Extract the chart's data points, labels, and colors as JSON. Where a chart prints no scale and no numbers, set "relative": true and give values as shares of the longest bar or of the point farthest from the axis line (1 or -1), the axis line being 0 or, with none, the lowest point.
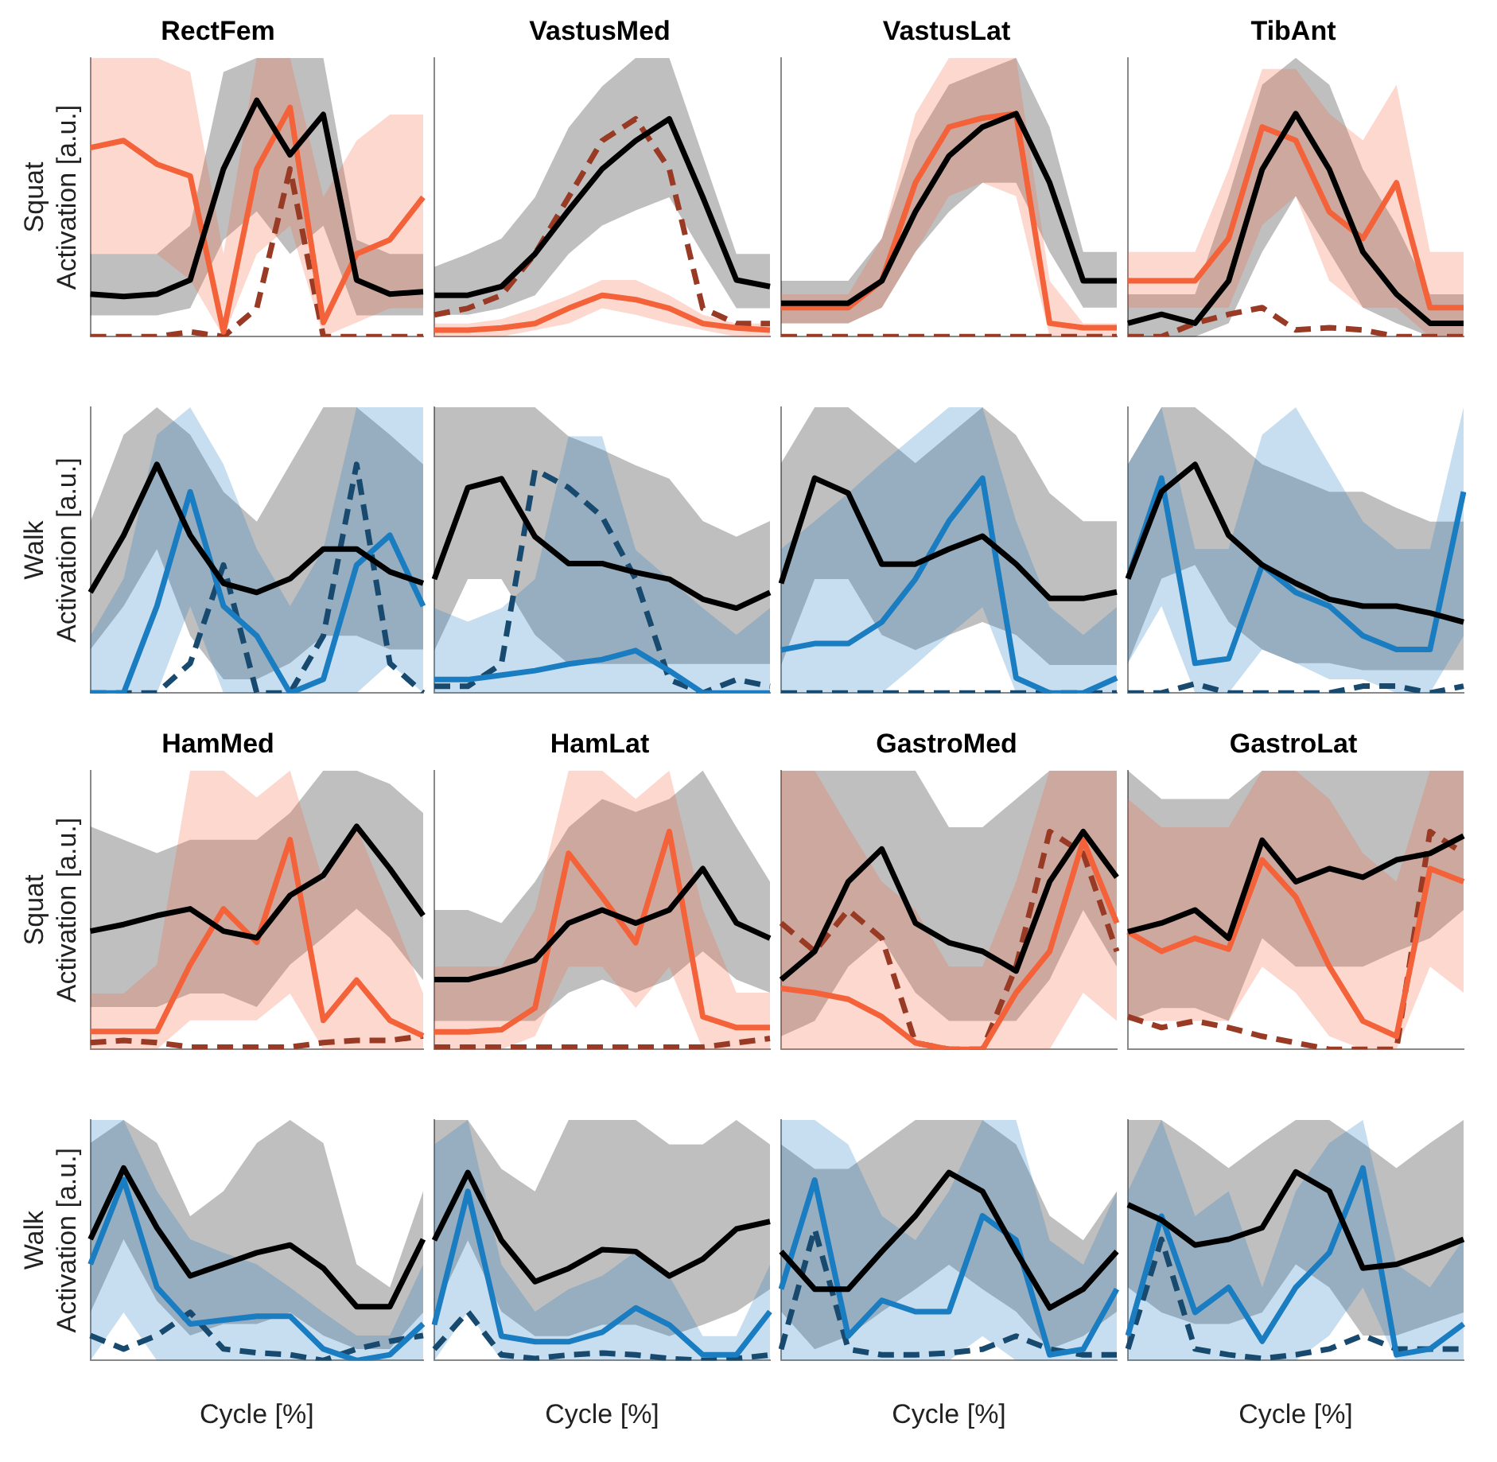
{
  "chart_data": [
    {
      "type": "line",
      "title": "RectFem",
      "ylabel": "Squat\nActivation [a.u.]",
      "relative": true,
      "grid": false,
      "categories": [
        null,
        null,
        null,
        null,
        null,
        null,
        null,
        null,
        null,
        null,
        null
      ],
      "series": [
        {
          "color": "#000000",
          "values": [
            0.18,
            0.17,
            0.18,
            0.24,
            0.71,
            1,
            0.77,
            0.94,
            0.24,
            0.18,
            0.19
          ],
          "lower": [
            0.09,
            0.09,
            0.09,
            0.12,
            0.41,
            0.53,
            0.35,
            0.47,
            0.09,
            0.09,
            0.09
          ],
          "upper": [
            0.35,
            0.35,
            0.35,
            0.47,
            1.12,
            1.18,
            1.18,
            1.18,
            0.41,
            0.35,
            0.35
          ]
        },
        {
          "color": "#f4623a",
          "values": [
            0.8,
            0.83,
            0.73,
            0.68,
            0.02,
            0.71,
            0.97,
            0.06,
            0.35,
            0.41,
            0.59
          ],
          "lower": [
            0.35,
            0.35,
            0.35,
            0.24,
            0,
            0.35,
            0.47,
            0,
            0.06,
            0.12,
            0.12
          ],
          "upper": [
            1.18,
            1.18,
            1.18,
            1.12,
            0.35,
            1.18,
            1.18,
            0.59,
            0.83,
            0.94,
            0.94
          ]
        },
        {
          "color": "#993a25",
          "line_style": "dashed",
          "values": [
            0,
            0,
            0,
            0.02,
            0,
            0.12,
            0.71,
            0,
            0,
            0,
            0
          ]
        }
      ]
    },
    {
      "type": "line",
      "title": "VastusMed",
      "relative": true,
      "grid": false,
      "categories": [
        null,
        null,
        null,
        null,
        null,
        null,
        null,
        null,
        null,
        null,
        null
      ],
      "series": [
        {
          "color": "#000000",
          "values": [
            0.19,
            0.19,
            0.23,
            0.38,
            0.58,
            0.77,
            0.9,
            1,
            0.64,
            0.26,
            0.23
          ],
          "lower": [
            0.1,
            0.1,
            0.13,
            0.19,
            0.38,
            0.51,
            0.58,
            0.64,
            0.38,
            0.13,
            0.13
          ],
          "upper": [
            0.32,
            0.38,
            0.45,
            0.64,
            0.96,
            1.15,
            1.28,
            1.28,
            0.83,
            0.38,
            0.38
          ]
        },
        {
          "color": "#f4623a",
          "values": [
            0.03,
            0.03,
            0.04,
            0.06,
            0.13,
            0.19,
            0.17,
            0.13,
            0.06,
            0.04,
            0.03
          ],
          "lower": [
            0,
            0,
            0,
            0.03,
            0.06,
            0.13,
            0.1,
            0.06,
            0.03,
            0,
            0
          ],
          "upper": [
            0.06,
            0.06,
            0.08,
            0.13,
            0.19,
            0.26,
            0.26,
            0.19,
            0.1,
            0.06,
            0.06
          ]
        },
        {
          "color": "#993a25",
          "line_style": "dashed",
          "values": [
            0.1,
            0.13,
            0.19,
            0.38,
            0.64,
            0.9,
            1,
            0.77,
            0.13,
            0.06,
            0.06
          ]
        }
      ]
    },
    {
      "type": "line",
      "title": "VastusLat",
      "relative": true,
      "grid": false,
      "categories": [
        null,
        null,
        null,
        null,
        null,
        null,
        null,
        null,
        null,
        null,
        null
      ],
      "series": [
        {
          "color": "#000000",
          "values": [
            0.15,
            0.15,
            0.15,
            0.25,
            0.56,
            0.81,
            0.94,
            1,
            0.69,
            0.25,
            0.25
          ],
          "lower": [
            0.06,
            0.06,
            0.06,
            0.13,
            0.38,
            0.56,
            0.69,
            0.69,
            0.38,
            0.13,
            0.13
          ],
          "upper": [
            0.25,
            0.25,
            0.25,
            0.44,
            0.88,
            1.13,
            1.19,
            1.25,
            0.94,
            0.38,
            0.38
          ]
        },
        {
          "color": "#f4623a",
          "values": [
            0.13,
            0.13,
            0.13,
            0.25,
            0.69,
            0.94,
            0.98,
            1,
            0.06,
            0.04,
            0.04
          ],
          "lower": [
            0.06,
            0.06,
            0.06,
            0.13,
            0.38,
            0.63,
            0.69,
            0.63,
            0,
            0,
            0
          ],
          "upper": [
            0.19,
            0.19,
            0.19,
            0.44,
            1,
            1.25,
            1.25,
            1.25,
            0.25,
            0.06,
            0.06
          ]
        },
        {
          "color": "#993a25",
          "line_style": "dashed",
          "values": [
            0,
            0,
            0,
            0,
            0,
            0,
            0,
            0,
            0,
            0,
            0
          ]
        }
      ]
    },
    {
      "type": "line",
      "title": "TibAnt",
      "relative": true,
      "grid": false,
      "categories": [
        null,
        null,
        null,
        null,
        null,
        null,
        null,
        null,
        null,
        null,
        null
      ],
      "series": [
        {
          "color": "#000000",
          "values": [
            0.06,
            0.1,
            0.06,
            0.25,
            0.75,
            1,
            0.75,
            0.38,
            0.19,
            0.06,
            0.06
          ],
          "lower": [
            0,
            0,
            0,
            0.06,
            0.38,
            0.63,
            0.38,
            0.13,
            0.06,
            0,
            0
          ],
          "upper": [
            0.19,
            0.19,
            0.19,
            0.63,
            1.13,
            1.25,
            1.13,
            0.75,
            0.5,
            0.19,
            0.19
          ]
        },
        {
          "color": "#f4623a",
          "values": [
            0.25,
            0.25,
            0.25,
            0.44,
            0.94,
            0.88,
            0.56,
            0.44,
            0.69,
            0.13,
            0.13
          ],
          "lower": [
            0.13,
            0.13,
            0.13,
            0.13,
            0.5,
            0.63,
            0.25,
            0.13,
            0.13,
            0,
            0
          ],
          "upper": [
            0.38,
            0.38,
            0.38,
            0.75,
            1.2,
            1.2,
            1,
            0.88,
            1.13,
            0.38,
            0.38
          ]
        },
        {
          "color": "#993a25",
          "line_style": "dashed",
          "values": [
            0,
            0,
            0.06,
            0.1,
            0.13,
            0.03,
            0.04,
            0.03,
            0,
            0,
            0
          ]
        }
      ]
    },
    {
      "type": "line",
      "ylabel": "Walk\nActivation [a.u.]",
      "relative": true,
      "grid": false,
      "categories": [
        null,
        null,
        null,
        null,
        null,
        null,
        null,
        null,
        null,
        null,
        null
      ],
      "series": [
        {
          "color": "#000000",
          "values": [
            0.44,
            0.69,
            1,
            0.69,
            0.48,
            0.44,
            0.5,
            0.63,
            0.63,
            0.53,
            0.48
          ],
          "lower": [
            0.19,
            0.38,
            0.63,
            0.25,
            0.06,
            0.06,
            0.13,
            0.25,
            0.25,
            0.19,
            0.19
          ],
          "upper": [
            0.75,
            1.13,
            1.25,
            1.13,
            0.88,
            0.75,
            1,
            1.25,
            1.25,
            1.13,
            1
          ]
        },
        {
          "color": "#1a7cc1",
          "values": [
            0,
            0,
            0.38,
            0.88,
            0.38,
            0.25,
            0,
            0.06,
            0.56,
            0.69,
            0.38
          ],
          "lower": [
            0,
            0,
            0,
            0.38,
            0,
            0,
            0,
            0,
            0,
            0.13,
            0
          ],
          "upper": [
            0.25,
            0.5,
            1.13,
            1.25,
            1,
            0.63,
            0.38,
            0.63,
            1.25,
            1.25,
            1.25
          ]
        },
        {
          "color": "#174a6e",
          "line_style": "dashed",
          "values": [
            0,
            0,
            0,
            0.13,
            0.56,
            0,
            0,
            0.25,
            1,
            0.13,
            0
          ]
        }
      ]
    },
    {
      "type": "line",
      "relative": true,
      "grid": false,
      "categories": [
        null,
        null,
        null,
        null,
        null,
        null,
        null,
        null,
        null,
        null,
        null
      ],
      "series": [
        {
          "color": "#000000",
          "values": [
            0.51,
            0.92,
            0.96,
            0.7,
            0.58,
            0.58,
            0.54,
            0.51,
            0.42,
            0.38,
            0.45
          ],
          "lower": [
            0.19,
            0.51,
            0.51,
            0.26,
            0.13,
            0.13,
            0.13,
            0.13,
            0.13,
            0.13,
            0.13
          ],
          "upper": [
            1.28,
            1.28,
            1.28,
            1.28,
            1.15,
            1.09,
            1.02,
            0.96,
            0.77,
            0.7,
            0.77
          ]
        },
        {
          "color": "#1a7cc1",
          "values": [
            0.06,
            0.06,
            0.08,
            0.1,
            0.13,
            0.15,
            0.19,
            0.1,
            0,
            0,
            0
          ],
          "lower": [
            0,
            0,
            0,
            0,
            0,
            0,
            0,
            0,
            0,
            0,
            0
          ],
          "upper": [
            0.38,
            0.32,
            0.38,
            0.51,
            1.15,
            1.15,
            0.64,
            0.51,
            0.38,
            0.26,
            0.38
          ]
        },
        {
          "color": "#174a6e",
          "line_style": "dashed",
          "values": [
            0.03,
            0.03,
            0.13,
            1,
            0.92,
            0.79,
            0.51,
            0.06,
            0,
            0.06,
            0.03
          ]
        }
      ]
    },
    {
      "type": "line",
      "relative": true,
      "grid": false,
      "categories": [
        null,
        null,
        null,
        null,
        null,
        null,
        null,
        null,
        null,
        null,
        null
      ],
      "series": [
        {
          "color": "#000000",
          "values": [
            0.51,
            1,
            0.93,
            0.6,
            0.6,
            0.67,
            0.73,
            0.6,
            0.44,
            0.44,
            0.47
          ],
          "lower": [
            0.13,
            0.53,
            0.53,
            0.27,
            0.2,
            0.27,
            0.33,
            0.27,
            0.13,
            0.13,
            0.13
          ],
          "upper": [
            1.07,
            1.33,
            1.33,
            1.2,
            1.07,
            1.2,
            1.33,
            1.2,
            0.93,
            0.8,
            0.8
          ]
        },
        {
          "color": "#1a7cc1",
          "values": [
            0.2,
            0.23,
            0.23,
            0.33,
            0.53,
            0.8,
            1,
            0.07,
            0,
            0,
            0.07
          ],
          "lower": [
            0,
            0,
            0,
            0,
            0.13,
            0.27,
            0.4,
            0,
            0,
            0,
            0
          ],
          "upper": [
            0.67,
            0.8,
            0.93,
            1.07,
            1.2,
            1.33,
            1.33,
            0.8,
            0.4,
            0.27,
            0.4
          ]
        },
        {
          "color": "#174a6e",
          "line_style": "dashed",
          "values": [
            0,
            0,
            0,
            0,
            0,
            0,
            0,
            0,
            0,
            0,
            0
          ]
        }
      ]
    },
    {
      "type": "line",
      "relative": true,
      "grid": false,
      "categories": [
        null,
        null,
        null,
        null,
        null,
        null,
        null,
        null,
        null,
        null,
        null
      ],
      "series": [
        {
          "color": "#000000",
          "values": [
            0.5,
            0.88,
            1,
            0.69,
            0.56,
            0.48,
            0.41,
            0.38,
            0.38,
            0.35,
            0.31
          ],
          "lower": [
            0.13,
            0.5,
            0.56,
            0.31,
            0.19,
            0.13,
            0.13,
            0.1,
            0.1,
            0.1,
            0.1
          ],
          "upper": [
            1,
            1.25,
            1.25,
            1.13,
            1,
            0.94,
            0.88,
            0.88,
            0.81,
            0.75,
            0.75
          ]
        },
        {
          "color": "#1a7cc1",
          "values": [
            0.5,
            0.94,
            0.13,
            0.15,
            0.56,
            0.44,
            0.38,
            0.25,
            0.19,
            0.19,
            0.88
          ],
          "lower": [
            0.13,
            0.38,
            0,
            0,
            0.19,
            0.13,
            0.06,
            0.06,
            0,
            0,
            0.25
          ],
          "upper": [
            1,
            1.25,
            0.63,
            0.63,
            1.13,
            1.25,
            1,
            0.75,
            0.63,
            0.63,
            1.25
          ]
        },
        {
          "color": "#174a6e",
          "line_style": "dashed",
          "values": [
            0,
            0,
            0.04,
            0,
            0,
            0,
            0,
            0.03,
            0.03,
            0,
            0.03
          ]
        }
      ]
    },
    {
      "type": "line",
      "title": "HamMed",
      "ylabel": "Squat\nActivation [a.u.]",
      "relative": true,
      "grid": false,
      "categories": [
        null,
        null,
        null,
        null,
        null,
        null,
        null,
        null,
        null,
        null,
        null
      ],
      "series": [
        {
          "color": "#000000",
          "values": [
            0.53,
            0.56,
            0.6,
            0.63,
            0.53,
            0.5,
            0.69,
            0.78,
            1,
            0.81,
            0.6
          ],
          "lower": [
            0.19,
            0.19,
            0.19,
            0.25,
            0.25,
            0.19,
            0.38,
            0.5,
            0.63,
            0.5,
            0.31
          ],
          "upper": [
            1,
            0.94,
            0.88,
            0.94,
            0.94,
            0.94,
            1.06,
            1.25,
            1.25,
            1.19,
            1.06
          ]
        },
        {
          "color": "#f4623a",
          "values": [
            0.08,
            0.08,
            0.08,
            0.38,
            0.63,
            0.48,
            0.94,
            0.13,
            0.31,
            0.13,
            0.06
          ],
          "lower": [
            0,
            0,
            0,
            0.13,
            0.13,
            0.13,
            0.25,
            0,
            0,
            0,
            0
          ],
          "upper": [
            0.25,
            0.25,
            0.38,
            1.25,
            1.25,
            1.13,
            1.25,
            0.75,
            1,
            0.63,
            0.25
          ]
        },
        {
          "color": "#993a25",
          "line_style": "dashed",
          "values": [
            0.03,
            0.04,
            0.03,
            0.01,
            0.01,
            0.01,
            0.01,
            0.03,
            0.04,
            0.04,
            0.06
          ]
        }
      ]
    },
    {
      "type": "line",
      "title": "HamLat",
      "relative": true,
      "grid": false,
      "categories": [
        null,
        null,
        null,
        null,
        null,
        null,
        null,
        null,
        null,
        null,
        null
      ],
      "series": [
        {
          "color": "#000000",
          "values": [
            0.32,
            0.32,
            0.36,
            0.41,
            0.58,
            0.64,
            0.58,
            0.64,
            0.83,
            0.58,
            0.51
          ],
          "lower": [
            0.13,
            0.13,
            0.13,
            0.13,
            0.26,
            0.32,
            0.26,
            0.32,
            0.45,
            0.32,
            0.26
          ],
          "upper": [
            0.64,
            0.64,
            0.58,
            0.77,
            1.02,
            1.15,
            1.09,
            1.15,
            1.28,
            1.02,
            0.77
          ]
        },
        {
          "color": "#f4623a",
          "values": [
            0.08,
            0.08,
            0.09,
            0.19,
            0.9,
            0.7,
            0.49,
            1,
            0.15,
            0.1,
            0.1
          ],
          "lower": [
            0,
            0,
            0,
            0.06,
            0.38,
            0.38,
            0.19,
            0.38,
            0,
            0,
            0
          ],
          "upper": [
            0.38,
            0.38,
            0.38,
            0.64,
            1.28,
            1.28,
            1.15,
            1.28,
            0.64,
            0.26,
            0.26
          ]
        },
        {
          "color": "#993a25",
          "line_style": "dashed",
          "values": [
            0.01,
            0.01,
            0.01,
            0.01,
            0.01,
            0.01,
            0.01,
            0.01,
            0.01,
            0.03,
            0.05
          ]
        }
      ]
    },
    {
      "type": "line",
      "title": "GastroMed",
      "relative": true,
      "grid": false,
      "categories": [
        null,
        null,
        null,
        null,
        null,
        null,
        null,
        null,
        null,
        null,
        null
      ],
      "series": [
        {
          "color": "#000000",
          "values": [
            0.32,
            0.45,
            0.77,
            0.92,
            0.58,
            0.49,
            0.45,
            0.36,
            0.77,
            1,
            0.79
          ],
          "lower": [
            0.06,
            0.13,
            0.38,
            0.51,
            0.26,
            0.13,
            0.13,
            0.13,
            0.32,
            0.64,
            0.38
          ],
          "upper": [
            1.28,
            1.28,
            1.28,
            1.28,
            1.28,
            1.02,
            1.02,
            1.15,
            1.28,
            1.28,
            1.28
          ]
        },
        {
          "color": "#f4623a",
          "values": [
            0.28,
            0.26,
            0.23,
            0.15,
            0.03,
            0,
            0,
            0.26,
            0.45,
            0.96,
            0.58
          ],
          "lower": [
            0,
            0,
            0,
            0,
            0,
            0,
            0,
            0,
            0,
            0.26,
            0.13
          ],
          "upper": [
            1.28,
            1.28,
            1.02,
            0.77,
            0.64,
            0.38,
            0.38,
            0.77,
            1.28,
            1.28,
            1.28
          ]
        },
        {
          "color": "#993a25",
          "line_style": "dashed",
          "values": [
            0.58,
            0.45,
            0.64,
            0.51,
            0.03,
            0,
            0,
            0.38,
            1,
            0.9,
            0.45
          ]
        }
      ]
    },
    {
      "type": "line",
      "title": "GastroLat",
      "relative": true,
      "grid": false,
      "categories": [
        null,
        null,
        null,
        null,
        null,
        null,
        null,
        null,
        null,
        null,
        null
      ],
      "series": [
        {
          "color": "#000000",
          "values": [
            0.54,
            0.58,
            0.64,
            0.51,
            0.96,
            0.77,
            0.83,
            0.79,
            0.87,
            0.9,
            0.98
          ],
          "lower": [
            0.13,
            0.19,
            0.19,
            0.13,
            0.51,
            0.38,
            0.38,
            0.38,
            0.45,
            0.51,
            0.64
          ],
          "upper": [
            1.28,
            1.15,
            1.15,
            1.15,
            1.28,
            1.28,
            1.28,
            1.28,
            1.28,
            1.28,
            1.28
          ]
        },
        {
          "color": "#f4623a",
          "values": [
            0.54,
            0.45,
            0.51,
            0.46,
            0.87,
            0.7,
            0.38,
            0.13,
            0.06,
            0.83,
            0.77
          ],
          "lower": [
            0.13,
            0.13,
            0.13,
            0.13,
            0.38,
            0.26,
            0.06,
            0,
            0,
            0.38,
            0.26
          ],
          "upper": [
            1.15,
            1.02,
            1.02,
            1.02,
            1.28,
            1.28,
            1.15,
            0.9,
            0.77,
            1.28,
            1.28
          ]
        },
        {
          "color": "#993a25",
          "line_style": "dashed",
          "values": [
            0.15,
            0.1,
            0.13,
            0.1,
            0.06,
            0.03,
            0,
            0,
            0,
            1,
            0.9
          ]
        }
      ]
    },
    {
      "type": "line",
      "ylabel": "Walk\nActivation [a.u.]",
      "xlabel": "Cycle [%]",
      "relative": true,
      "grid": false,
      "categories": [
        null,
        null,
        null,
        null,
        null,
        null,
        null,
        null,
        null,
        null,
        null
      ],
      "series": [
        {
          "color": "#000000",
          "values": [
            0.63,
            1,
            0.69,
            0.44,
            0.5,
            0.56,
            0.6,
            0.48,
            0.28,
            0.28,
            0.63
          ],
          "lower": [
            0.25,
            0.63,
            0.31,
            0.13,
            0.19,
            0.19,
            0.25,
            0.13,
            0.06,
            0.06,
            0.25
          ],
          "upper": [
            1.13,
            1.25,
            1.13,
            0.75,
            0.88,
            1.13,
            1.25,
            1.13,
            0.5,
            0.38,
            0.88
          ]
        },
        {
          "color": "#1a7cc1",
          "values": [
            0.5,
            0.94,
            0.38,
            0.19,
            0.21,
            0.23,
            0.23,
            0.06,
            0,
            0.03,
            0.19
          ],
          "lower": [
            0,
            0.25,
            0,
            0,
            0,
            0,
            0,
            0,
            0,
            0,
            0
          ],
          "upper": [
            1.25,
            1.25,
            0.88,
            0.63,
            0.56,
            0.5,
            0.38,
            0.25,
            0.13,
            0.13,
            0.5
          ]
        },
        {
          "color": "#174a6e",
          "line_style": "dashed",
          "values": [
            0.13,
            0.06,
            0.13,
            0.25,
            0.06,
            0.04,
            0.03,
            0,
            0.06,
            0.1,
            0.13
          ]
        }
      ]
    },
    {
      "type": "line",
      "xlabel": "Cycle [%]",
      "relative": true,
      "grid": false,
      "categories": [
        null,
        null,
        null,
        null,
        null,
        null,
        null,
        null,
        null,
        null,
        null
      ],
      "series": [
        {
          "color": "#000000",
          "values": [
            0.64,
            1,
            0.64,
            0.42,
            0.49,
            0.59,
            0.58,
            0.45,
            0.54,
            0.7,
            0.74
          ],
          "lower": [
            0.26,
            0.64,
            0.26,
            0.13,
            0.13,
            0.19,
            0.19,
            0.13,
            0.19,
            0.26,
            0.38
          ],
          "upper": [
            1.28,
            1.28,
            1.02,
            0.9,
            1.28,
            1.28,
            1.28,
            1.15,
            1.15,
            1.28,
            1.15
          ]
        },
        {
          "color": "#1a7cc1",
          "values": [
            0.19,
            0.9,
            0.13,
            0.1,
            0.1,
            0.15,
            0.28,
            0.19,
            0.03,
            0.03,
            0.26
          ],
          "lower": [
            0,
            0.26,
            0,
            0,
            0,
            0,
            0,
            0,
            0,
            0,
            0
          ],
          "upper": [
            1.15,
            1.28,
            0.51,
            0.26,
            0.38,
            0.45,
            0.58,
            0.45,
            0.13,
            0.13,
            0.51
          ]
        },
        {
          "color": "#174a6e",
          "line_style": "dashed",
          "values": [
            0.06,
            0.26,
            0.03,
            0.01,
            0.03,
            0.04,
            0.03,
            0.01,
            0,
            0.01,
            0.03
          ]
        }
      ]
    },
    {
      "type": "line",
      "xlabel": "Cycle [%]",
      "relative": true,
      "grid": false,
      "categories": [
        null,
        null,
        null,
        null,
        null,
        null,
        null,
        null,
        null,
        null,
        null
      ],
      "series": [
        {
          "color": "#000000",
          "values": [
            0.58,
            0.38,
            0.38,
            0.58,
            0.77,
            1,
            0.9,
            0.58,
            0.28,
            0.38,
            0.58
          ],
          "lower": [
            0.26,
            0.06,
            0.13,
            0.26,
            0.38,
            0.51,
            0.38,
            0.26,
            0.06,
            0.13,
            0.26
          ],
          "upper": [
            1.15,
            1.02,
            1.02,
            1.15,
            1.28,
            1.28,
            1.28,
            1.15,
            0.77,
            0.64,
            0.9
          ]
        },
        {
          "color": "#1a7cc1",
          "values": [
            0.38,
            0.96,
            0.13,
            0.32,
            0.26,
            0.26,
            0.77,
            0.64,
            0.03,
            0.06,
            0.38
          ],
          "lower": [
            0,
            0,
            0,
            0,
            0,
            0,
            0.13,
            0,
            0,
            0,
            0
          ],
          "upper": [
            1.28,
            1.28,
            1.15,
            0.77,
            0.64,
            0.9,
            1.28,
            1.28,
            0.64,
            0.51,
            0.9
          ]
        },
        {
          "color": "#174a6e",
          "line_style": "dashed",
          "values": [
            0.06,
            0.7,
            0.06,
            0.03,
            0.03,
            0.04,
            0.06,
            0.13,
            0.06,
            0.03,
            0.03
          ]
        }
      ]
    },
    {
      "type": "line",
      "xlabel": "Cycle [%]",
      "relative": true,
      "grid": false,
      "categories": [
        null,
        null,
        null,
        null,
        null,
        null,
        null,
        null,
        null,
        null,
        null
      ],
      "series": [
        {
          "color": "#000000",
          "values": [
            0.81,
            0.73,
            0.6,
            0.63,
            0.69,
            0.98,
            0.88,
            0.48,
            0.5,
            0.56,
            0.63
          ],
          "lower": [
            0.38,
            0.25,
            0.19,
            0.19,
            0.25,
            0.5,
            0.38,
            0.13,
            0.13,
            0.19,
            0.25
          ],
          "upper": [
            1.25,
            1.25,
            1.13,
            1,
            1.13,
            1.25,
            1.25,
            1.13,
            1,
            1.13,
            1.25
          ]
        },
        {
          "color": "#1a7cc1",
          "values": [
            0.13,
            0.75,
            0.25,
            0.38,
            0.1,
            0.38,
            0.56,
            1,
            0.03,
            0.06,
            0.19
          ],
          "lower": [
            0,
            0,
            0,
            0,
            0,
            0,
            0.13,
            0.38,
            0,
            0,
            0
          ],
          "upper": [
            0.88,
            1.25,
            0.75,
            0.88,
            0.38,
            0.88,
            1.13,
            1.25,
            0.5,
            0.38,
            0.63
          ]
        },
        {
          "color": "#174a6e",
          "line_style": "dashed",
          "values": [
            0.06,
            0.63,
            0.06,
            0.03,
            0.01,
            0.03,
            0.06,
            0.13,
            0.06,
            0.06,
            0.06
          ]
        }
      ]
    }
  ]
}
